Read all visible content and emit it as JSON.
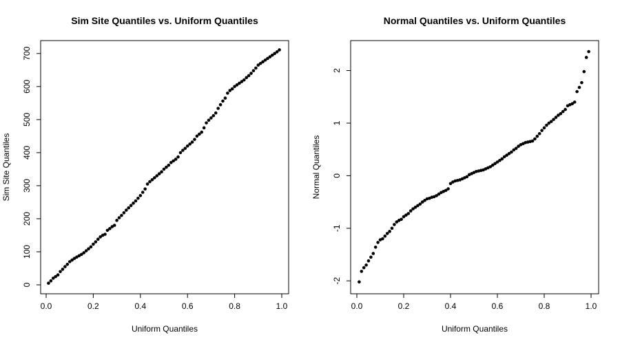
{
  "chart_data": [
    {
      "type": "scatter",
      "title": "Sim Site Quantiles vs. Uniform Quantiles",
      "xlabel": "Uniform Quantiles",
      "ylabel": "Sim Site Quantiles",
      "xlim": [
        0,
        1
      ],
      "ylim": [
        0,
        712
      ],
      "xticks": [
        0,
        0.2,
        0.4,
        0.6,
        0.8,
        1
      ],
      "xtick_labels": [
        "0.0",
        "0.2",
        "0.4",
        "0.6",
        "0.8",
        "1.0"
      ],
      "yticks": [
        0,
        100,
        200,
        300,
        400,
        500,
        600,
        700
      ],
      "ytick_labels": [
        "0",
        "100",
        "200",
        "300",
        "400",
        "500",
        "600",
        "700"
      ],
      "grid": false,
      "point_color": "#000000",
      "x": [
        0.01,
        0.02,
        0.03,
        0.04,
        0.05,
        0.06,
        0.07,
        0.08,
        0.09,
        0.1,
        0.11,
        0.12,
        0.13,
        0.14,
        0.15,
        0.16,
        0.17,
        0.18,
        0.19,
        0.2,
        0.21,
        0.22,
        0.23,
        0.24,
        0.25,
        0.26,
        0.27,
        0.28,
        0.29,
        0.3,
        0.31,
        0.32,
        0.33,
        0.34,
        0.35,
        0.36,
        0.37,
        0.38,
        0.39,
        0.4,
        0.41,
        0.42,
        0.43,
        0.44,
        0.45,
        0.46,
        0.47,
        0.48,
        0.49,
        0.5,
        0.51,
        0.52,
        0.53,
        0.54,
        0.55,
        0.56,
        0.57,
        0.58,
        0.59,
        0.6,
        0.61,
        0.62,
        0.63,
        0.64,
        0.65,
        0.66,
        0.67,
        0.68,
        0.69,
        0.7,
        0.71,
        0.72,
        0.73,
        0.74,
        0.75,
        0.76,
        0.77,
        0.78,
        0.79,
        0.8,
        0.81,
        0.82,
        0.83,
        0.84,
        0.85,
        0.86,
        0.87,
        0.88,
        0.89,
        0.9,
        0.91,
        0.92,
        0.93,
        0.94,
        0.95,
        0.96,
        0.97,
        0.98,
        0.99
      ],
      "y": [
        5,
        12,
        20,
        25,
        30,
        40,
        47,
        55,
        62,
        70,
        75,
        80,
        84,
        88,
        92,
        97,
        103,
        109,
        115,
        123,
        130,
        138,
        145,
        150,
        153,
        165,
        170,
        176,
        180,
        195,
        203,
        210,
        218,
        226,
        233,
        240,
        247,
        254,
        262,
        270,
        280,
        290,
        305,
        312,
        318,
        324,
        330,
        336,
        342,
        350,
        356,
        362,
        370,
        375,
        380,
        387,
        400,
        407,
        413,
        420,
        426,
        432,
        440,
        450,
        456,
        462,
        475,
        490,
        498,
        505,
        512,
        520,
        534,
        545,
        556,
        565,
        580,
        588,
        593,
        600,
        605,
        610,
        615,
        620,
        627,
        633,
        640,
        648,
        656,
        665,
        670,
        675,
        680,
        685,
        690,
        695,
        700,
        705,
        711
      ]
    },
    {
      "type": "scatter",
      "title": "Normal Quantiles vs. Uniform Quantiles",
      "xlabel": "Uniform Quantiles",
      "ylabel": "Normal Quantiles",
      "xlim": [
        0,
        1
      ],
      "ylim": [
        -2.05,
        2.4
      ],
      "xticks": [
        0,
        0.2,
        0.4,
        0.6,
        0.8,
        1
      ],
      "xtick_labels": [
        "0.0",
        "0.2",
        "0.4",
        "0.6",
        "0.8",
        "1.0"
      ],
      "yticks": [
        -2,
        -1,
        0,
        1,
        2
      ],
      "ytick_labels": [
        "-2",
        "-1",
        "0",
        "1",
        "2"
      ],
      "grid": false,
      "point_color": "#000000",
      "x": [
        0.01,
        0.02,
        0.03,
        0.04,
        0.05,
        0.06,
        0.07,
        0.08,
        0.09,
        0.1,
        0.11,
        0.12,
        0.13,
        0.14,
        0.15,
        0.16,
        0.17,
        0.18,
        0.19,
        0.2,
        0.21,
        0.22,
        0.23,
        0.24,
        0.25,
        0.26,
        0.27,
        0.28,
        0.29,
        0.3,
        0.31,
        0.32,
        0.33,
        0.34,
        0.35,
        0.36,
        0.37,
        0.38,
        0.39,
        0.4,
        0.41,
        0.42,
        0.43,
        0.44,
        0.45,
        0.46,
        0.47,
        0.48,
        0.49,
        0.5,
        0.51,
        0.52,
        0.53,
        0.54,
        0.55,
        0.56,
        0.57,
        0.58,
        0.59,
        0.6,
        0.61,
        0.62,
        0.63,
        0.64,
        0.65,
        0.66,
        0.67,
        0.68,
        0.69,
        0.7,
        0.71,
        0.72,
        0.73,
        0.74,
        0.75,
        0.76,
        0.77,
        0.78,
        0.79,
        0.8,
        0.81,
        0.82,
        0.83,
        0.84,
        0.85,
        0.86,
        0.87,
        0.88,
        0.89,
        0.9,
        0.91,
        0.92,
        0.93,
        0.94,
        0.95,
        0.96,
        0.97,
        0.98,
        0.99
      ],
      "y": [
        -2.02,
        -1.82,
        -1.75,
        -1.7,
        -1.62,
        -1.55,
        -1.48,
        -1.36,
        -1.27,
        -1.22,
        -1.2,
        -1.15,
        -1.1,
        -1.06,
        -1.0,
        -0.93,
        -0.88,
        -0.85,
        -0.83,
        -0.78,
        -0.75,
        -0.72,
        -0.67,
        -0.63,
        -0.6,
        -0.57,
        -0.54,
        -0.5,
        -0.47,
        -0.44,
        -0.43,
        -0.41,
        -0.4,
        -0.38,
        -0.35,
        -0.32,
        -0.3,
        -0.28,
        -0.25,
        -0.15,
        -0.12,
        -0.1,
        -0.09,
        -0.08,
        -0.06,
        -0.04,
        -0.02,
        0.02,
        0.04,
        0.06,
        0.08,
        0.09,
        0.1,
        0.11,
        0.13,
        0.15,
        0.17,
        0.2,
        0.23,
        0.26,
        0.29,
        0.32,
        0.36,
        0.39,
        0.42,
        0.45,
        0.49,
        0.52,
        0.56,
        0.59,
        0.61,
        0.63,
        0.64,
        0.65,
        0.66,
        0.7,
        0.75,
        0.8,
        0.86,
        0.91,
        0.96,
        1.0,
        1.03,
        1.07,
        1.11,
        1.15,
        1.18,
        1.22,
        1.26,
        1.33,
        1.35,
        1.37,
        1.4,
        1.6,
        1.68,
        1.77,
        1.98,
        2.25,
        2.36
      ]
    }
  ]
}
